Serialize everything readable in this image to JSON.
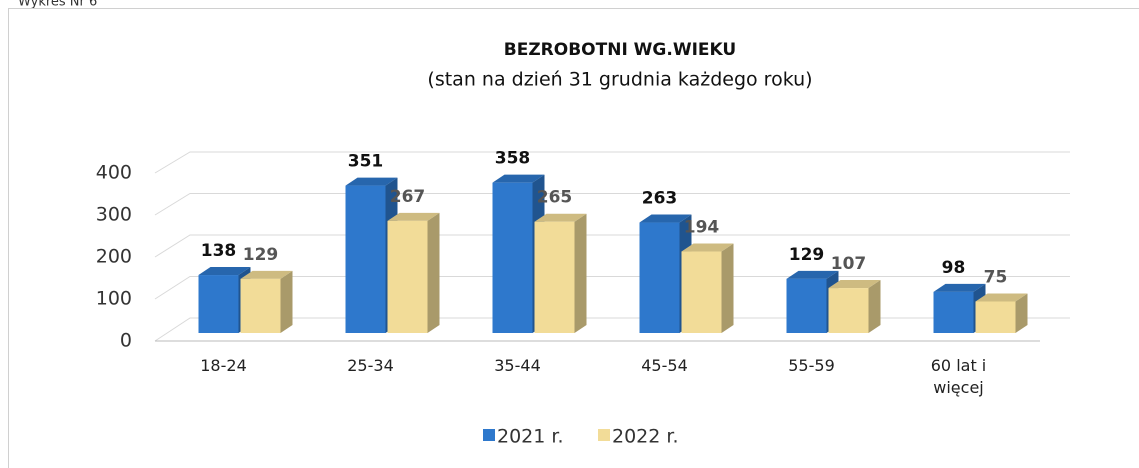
{
  "caption": "Wykres Nr 6",
  "chart_data": {
    "type": "bar3d",
    "title": "BEZROBOTNI WG.WIEKU",
    "subtitle": "(stan na dzień 31 grudnia każdego roku)",
    "categories": [
      "18-24",
      "25-34",
      "35-44",
      "45-54",
      "55-59",
      "60 lat i więcej"
    ],
    "series": [
      {
        "name": "2021 r.",
        "color": "#2e78cc",
        "values": [
          138,
          351,
          358,
          263,
          129,
          98
        ]
      },
      {
        "name": "2022 r.",
        "color": "#f2dc98",
        "values": [
          129,
          267,
          265,
          194,
          107,
          75
        ]
      }
    ],
    "ylim": [
      0,
      400
    ],
    "yticks": [
      0,
      100,
      200,
      300,
      400
    ],
    "grid": true,
    "legend": "bottom"
  }
}
